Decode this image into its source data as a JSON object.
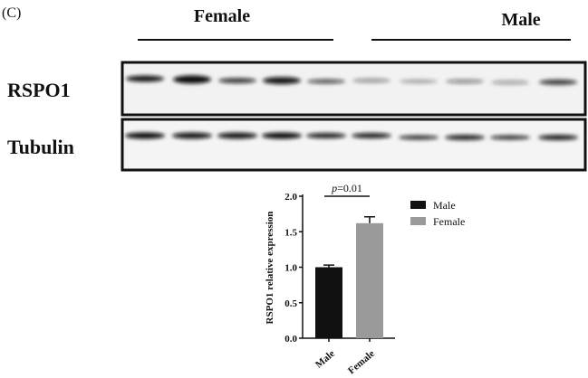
{
  "panel_label": "(C)",
  "groups": [
    {
      "label": "Female"
    },
    {
      "label": "Male"
    }
  ],
  "blot_rows": [
    {
      "label": "RSPO1"
    },
    {
      "label": "Tubulin"
    }
  ],
  "chart_data": {
    "type": "bar",
    "categories": [
      "Male",
      "Female"
    ],
    "values": [
      1.0,
      1.62
    ],
    "errors": [
      0.03,
      0.09
    ],
    "colors": [
      "#111111",
      "#9a9a9a"
    ],
    "ylabel": "RSPO1 relative expression",
    "ylim": [
      0,
      2.0
    ],
    "yticks": [
      "0.0",
      "0.5",
      "1.0",
      "1.5",
      "2.0"
    ],
    "legend": [
      {
        "name": "Male",
        "color": "#111111"
      },
      {
        "name": "Female",
        "color": "#9a9a9a"
      }
    ],
    "legend_position": "right",
    "annotation": {
      "p_italic": "p",
      "text": "=0.01"
    },
    "grid": false
  }
}
